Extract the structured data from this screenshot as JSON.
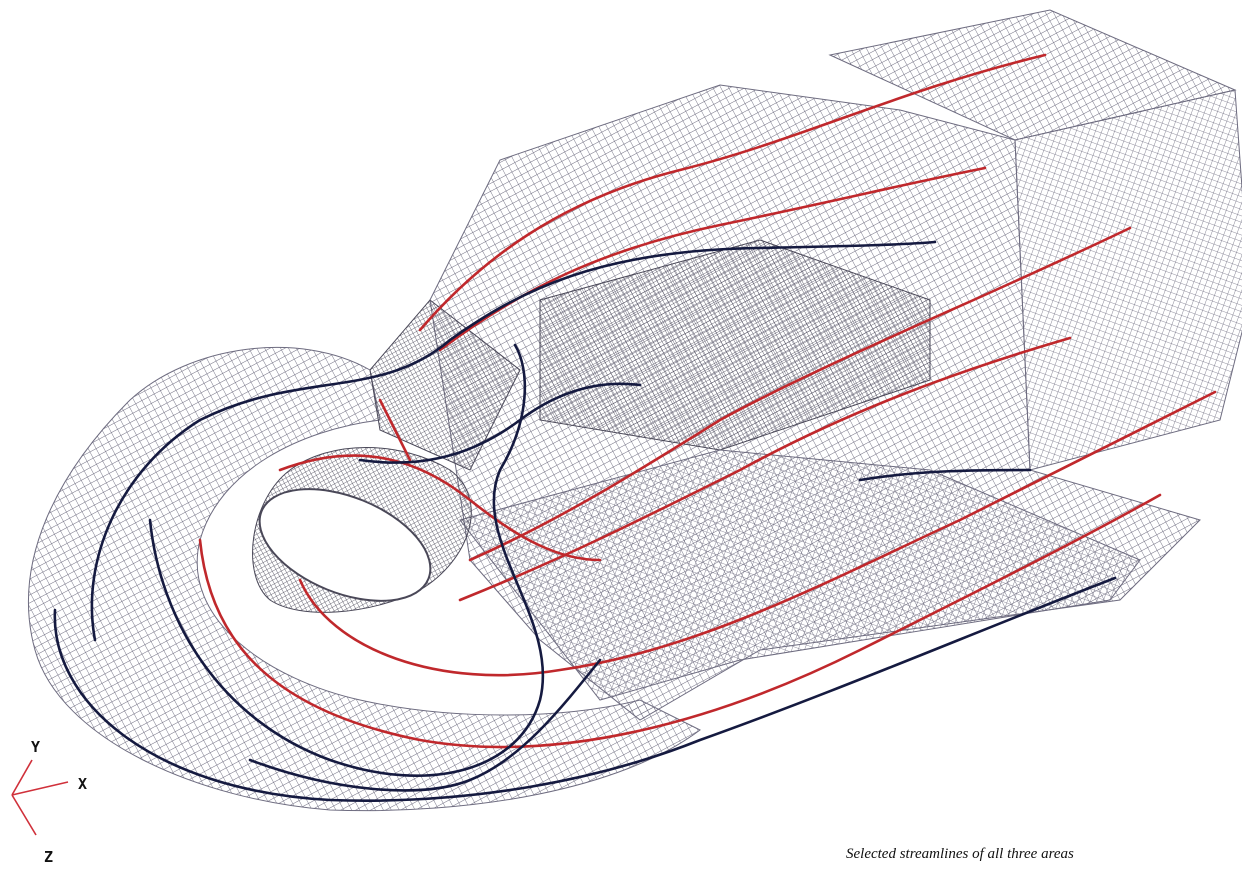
{
  "caption": "Selected streamlines of all three areas",
  "axes": {
    "y_label": "Y",
    "x_label": "X",
    "z_label": "Z"
  },
  "colors": {
    "background": "#ffffff",
    "mesh": "#6e6c80",
    "mesh_dark": "#4a4858",
    "streamline_red": "#c0282c",
    "streamline_dark": "#151a40",
    "axis_line": "#d0303a"
  },
  "legend": {
    "streamline_groups": [
      {
        "color": "streamline_red"
      },
      {
        "color": "streamline_dark"
      }
    ]
  }
}
